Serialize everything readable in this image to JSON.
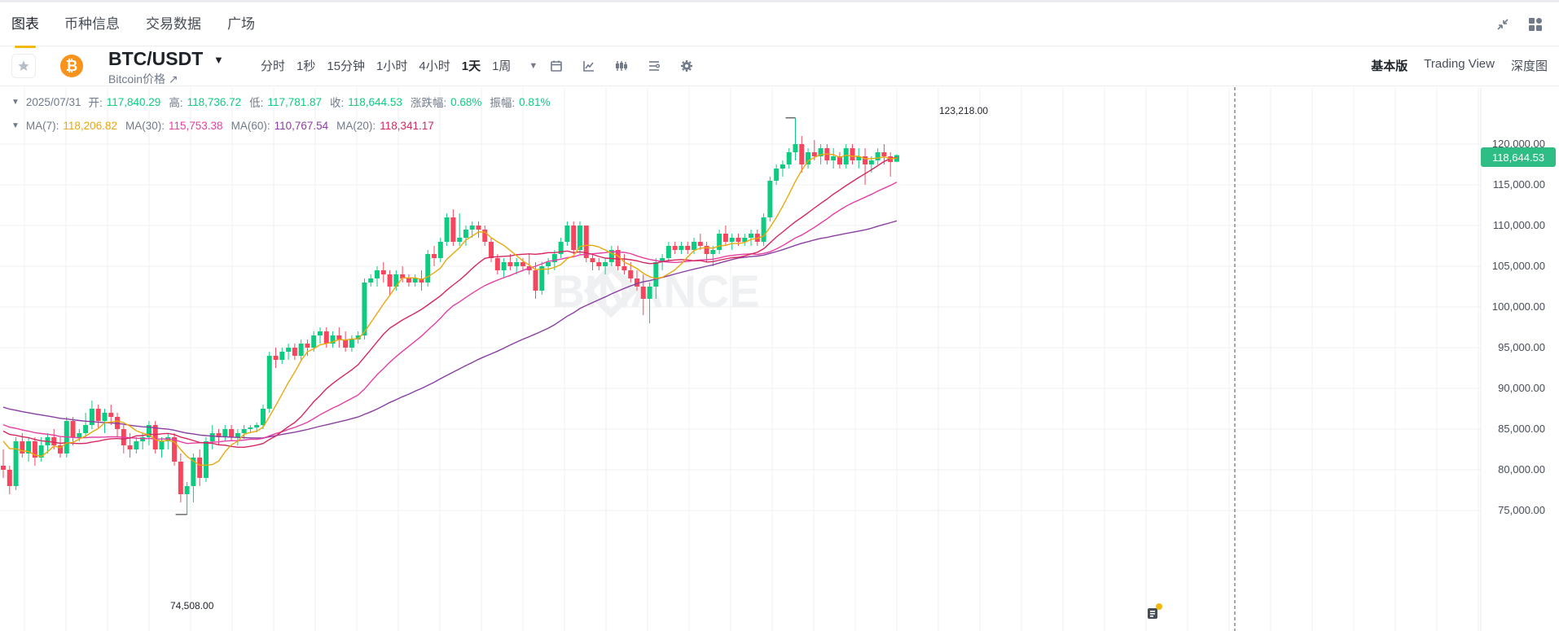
{
  "tabs": [
    {
      "label": "图表",
      "active": true
    },
    {
      "label": "币种信息",
      "active": false
    },
    {
      "label": "交易数据",
      "active": false
    },
    {
      "label": "广场",
      "active": false
    }
  ],
  "top_icons": [
    "collapse-icon",
    "layout-grid-icon"
  ],
  "header": {
    "pair": "BTC/USDT",
    "subtitle": "Bitcoin价格",
    "coin_symbol": "₿",
    "intervals": [
      "分时",
      "1秒",
      "15分钟",
      "1小时",
      "4小时",
      "1天",
      "1周"
    ],
    "active_interval": "1天",
    "tools": [
      "calendar-icon",
      "indicator-icon",
      "candle-type-icon",
      "drawing-tools-icon",
      "settings-icon"
    ],
    "views": [
      "基本版",
      "Trading View",
      "深度图"
    ],
    "active_view": "基本版"
  },
  "ohlc": {
    "date": "2025/07/31",
    "open_label": "开:",
    "open": "117,840.29",
    "high_label": "高:",
    "high": "118,736.72",
    "low_label": "低:",
    "low": "117,781.87",
    "close_label": "收:",
    "close": "118,644.53",
    "change_label": "涨跌幅:",
    "change": "0.68%",
    "amp_label": "振幅:",
    "amp": "0.81%"
  },
  "ma_legend": [
    {
      "label": "MA(7):",
      "value": "118,206.82",
      "color": "#e8a90e"
    },
    {
      "label": "MA(30):",
      "value": "115,753.38",
      "color": "#e63fa4"
    },
    {
      "label": "MA(60):",
      "value": "110,767.54",
      "color": "#8a3fa0"
    },
    {
      "label": "MA(20):",
      "value": "118,341.17",
      "color": "#d6285e"
    }
  ],
  "colors": {
    "up": "#0ecb81",
    "down": "#f6465d",
    "grid": "#f0f1f2",
    "accent": "#f0b90b"
  },
  "chart_data": {
    "type": "candlestick",
    "y_axis_ticks": [
      "120,000.00",
      "115,000.00",
      "110,000.00",
      "105,000.00",
      "100,000.00",
      "95,000.00",
      "90,000.00",
      "85,000.00",
      "80,000.00",
      "75,000.00"
    ],
    "ylim": [
      73000,
      123500
    ],
    "last_price": "118,644.53",
    "max_label": "123,218.00",
    "min_label": "74,508.00",
    "watermark": "BINANCE",
    "candles": [
      [
        80500,
        82500,
        79000,
        80000
      ],
      [
        80000,
        80500,
        77000,
        78000
      ],
      [
        78000,
        84000,
        77500,
        83500
      ],
      [
        83500,
        84500,
        81500,
        82000
      ],
      [
        82000,
        84000,
        81000,
        83500
      ],
      [
        83500,
        84000,
        80500,
        81500
      ],
      [
        81500,
        84000,
        81000,
        83000
      ],
      [
        83000,
        84500,
        82000,
        84000
      ],
      [
        84000,
        85000,
        82500,
        83000
      ],
      [
        83000,
        84000,
        81500,
        82000
      ],
      [
        82000,
        86500,
        81500,
        86000
      ],
      [
        86000,
        86500,
        83000,
        84000
      ],
      [
        84000,
        85000,
        83500,
        84500
      ],
      [
        84500,
        87000,
        84000,
        85500
      ],
      [
        85500,
        88500,
        85000,
        87500
      ],
      [
        87500,
        88000,
        85000,
        86000
      ],
      [
        86000,
        87500,
        84500,
        87000
      ],
      [
        87000,
        88000,
        85500,
        86500
      ],
      [
        86500,
        87000,
        84000,
        85000
      ],
      [
        85000,
        85500,
        82000,
        83000
      ],
      [
        83000,
        84500,
        81500,
        82500
      ],
      [
        82500,
        84000,
        82000,
        83500
      ],
      [
        83500,
        84500,
        82500,
        84000
      ],
      [
        84000,
        86000,
        83000,
        85500
      ],
      [
        85500,
        86000,
        82000,
        82500
      ],
      [
        82500,
        84000,
        81500,
        83500
      ],
      [
        83500,
        84500,
        82500,
        84000
      ],
      [
        84000,
        84500,
        80500,
        81000
      ],
      [
        81000,
        82000,
        76000,
        77000
      ],
      [
        77000,
        78500,
        74508,
        78000
      ],
      [
        78000,
        82000,
        76000,
        81500
      ],
      [
        81500,
        82500,
        78000,
        79000
      ],
      [
        79000,
        84000,
        78500,
        83500
      ],
      [
        83500,
        85500,
        82500,
        84500
      ],
      [
        84500,
        85000,
        83000,
        84000
      ],
      [
        84000,
        85500,
        83500,
        85000
      ],
      [
        85000,
        85500,
        83500,
        84000
      ],
      [
        84000,
        85000,
        83000,
        84500
      ],
      [
        84500,
        85500,
        83800,
        85000
      ],
      [
        85000,
        85500,
        84500,
        85200
      ],
      [
        85200,
        85800,
        84600,
        85500
      ],
      [
        85500,
        88000,
        85000,
        87500
      ],
      [
        87500,
        94500,
        87000,
        94000
      ],
      [
        94000,
        95000,
        92500,
        93500
      ],
      [
        93500,
        95000,
        93000,
        94500
      ],
      [
        94500,
        95500,
        93500,
        95000
      ],
      [
        95000,
        95500,
        93500,
        94000
      ],
      [
        94000,
        96000,
        93500,
        95500
      ],
      [
        95500,
        96000,
        94000,
        95000
      ],
      [
        95000,
        97000,
        94500,
        96500
      ],
      [
        96500,
        97500,
        95500,
        97000
      ],
      [
        97000,
        97500,
        95000,
        95500
      ],
      [
        95500,
        97000,
        95000,
        96500
      ],
      [
        96500,
        97500,
        95000,
        96000
      ],
      [
        96000,
        97000,
        94500,
        95000
      ],
      [
        95000,
        96500,
        94500,
        96000
      ],
      [
        96000,
        97000,
        95500,
        96500
      ],
      [
        96500,
        103500,
        96000,
        103000
      ],
      [
        103000,
        104000,
        102500,
        103500
      ],
      [
        103500,
        105000,
        102500,
        104500
      ],
      [
        104500,
        105500,
        103000,
        104000
      ],
      [
        104000,
        104500,
        101500,
        102500
      ],
      [
        102500,
        104500,
        102000,
        104000
      ],
      [
        104000,
        105000,
        103000,
        103500
      ],
      [
        103500,
        104000,
        102500,
        103000
      ],
      [
        103000,
        104000,
        102500,
        103500
      ],
      [
        103500,
        104500,
        102000,
        103000
      ],
      [
        103000,
        107000,
        102500,
        106500
      ],
      [
        106500,
        107500,
        105000,
        106000
      ],
      [
        106000,
        108500,
        105500,
        108000
      ],
      [
        108000,
        111500,
        107500,
        111000
      ],
      [
        111000,
        112000,
        107500,
        108000
      ],
      [
        108000,
        111500,
        107500,
        108500
      ],
      [
        108500,
        110000,
        107500,
        109500
      ],
      [
        109500,
        110500,
        108500,
        110000
      ],
      [
        110000,
        110500,
        108500,
        109500
      ],
      [
        109500,
        110000,
        107500,
        108000
      ],
      [
        108000,
        108500,
        105500,
        106000
      ],
      [
        106000,
        106500,
        104000,
        104500
      ],
      [
        104500,
        106000,
        103500,
        105500
      ],
      [
        105500,
        106500,
        104500,
        105000
      ],
      [
        105000,
        106000,
        104000,
        105500
      ],
      [
        105500,
        106000,
        104500,
        105000
      ],
      [
        105000,
        106500,
        104000,
        104500
      ],
      [
        104500,
        105500,
        101000,
        102000
      ],
      [
        102000,
        105500,
        101500,
        105000
      ],
      [
        105000,
        106000,
        104000,
        105500
      ],
      [
        105500,
        107000,
        104500,
        106500
      ],
      [
        106500,
        108500,
        106000,
        108000
      ],
      [
        108000,
        110500,
        107500,
        110000
      ],
      [
        110000,
        110500,
        106500,
        107000
      ],
      [
        107000,
        110500,
        106500,
        110000
      ],
      [
        110000,
        110000,
        105500,
        106000
      ],
      [
        106000,
        106500,
        104500,
        105500
      ],
      [
        105500,
        106000,
        104500,
        105000
      ],
      [
        105000,
        106000,
        104000,
        105500
      ],
      [
        105500,
        107500,
        105000,
        107000
      ],
      [
        107000,
        107500,
        104500,
        105000
      ],
      [
        105000,
        106500,
        104000,
        104500
      ],
      [
        104500,
        105500,
        103000,
        103500
      ],
      [
        103500,
        104500,
        102000,
        102500
      ],
      [
        102500,
        104000,
        99000,
        101000
      ],
      [
        101000,
        103000,
        98000,
        102500
      ],
      [
        102500,
        106000,
        101000,
        105500
      ],
      [
        105500,
        106500,
        104500,
        106000
      ],
      [
        106000,
        108000,
        105500,
        107500
      ],
      [
        107500,
        108000,
        106500,
        107000
      ],
      [
        107000,
        108000,
        106500,
        107500
      ],
      [
        107500,
        108000,
        106500,
        107000
      ],
      [
        107000,
        108500,
        106500,
        108000
      ],
      [
        108000,
        109000,
        107000,
        107500
      ],
      [
        107500,
        108000,
        105500,
        106500
      ],
      [
        106500,
        107500,
        105000,
        107000
      ],
      [
        107000,
        109500,
        106500,
        109000
      ],
      [
        109000,
        110000,
        107500,
        108000
      ],
      [
        108000,
        109000,
        107000,
        108500
      ],
      [
        108500,
        109000,
        107500,
        108000
      ],
      [
        108000,
        109000,
        107500,
        108500
      ],
      [
        108500,
        109500,
        107500,
        109000
      ],
      [
        109000,
        109500,
        107500,
        108000
      ],
      [
        108000,
        111500,
        107500,
        111000
      ],
      [
        111000,
        116000,
        110500,
        115500
      ],
      [
        115500,
        117500,
        115000,
        117000
      ],
      [
        117000,
        118000,
        116000,
        117500
      ],
      [
        117500,
        119500,
        117000,
        119000
      ],
      [
        119000,
        123218,
        118000,
        120000
      ],
      [
        120000,
        121000,
        116500,
        117500
      ],
      [
        117500,
        119500,
        117000,
        119000
      ],
      [
        119000,
        120500,
        118000,
        118500
      ],
      [
        118500,
        120000,
        117500,
        119500
      ],
      [
        119500,
        120000,
        117500,
        118000
      ],
      [
        118000,
        119500,
        117000,
        118500
      ],
      [
        118500,
        119000,
        117000,
        117500
      ],
      [
        117500,
        120000,
        117000,
        119500
      ],
      [
        119500,
        120000,
        117500,
        118000
      ],
      [
        118000,
        119500,
        117000,
        118500
      ],
      [
        118500,
        119500,
        115000,
        117500
      ],
      [
        117500,
        118500,
        116500,
        118000
      ],
      [
        118000,
        119500,
        117500,
        119000
      ],
      [
        119000,
        120000,
        117500,
        118500
      ],
      [
        118500,
        119000,
        116000,
        117800
      ],
      [
        117840.29,
        118736.72,
        117781.87,
        118644.53
      ]
    ]
  }
}
